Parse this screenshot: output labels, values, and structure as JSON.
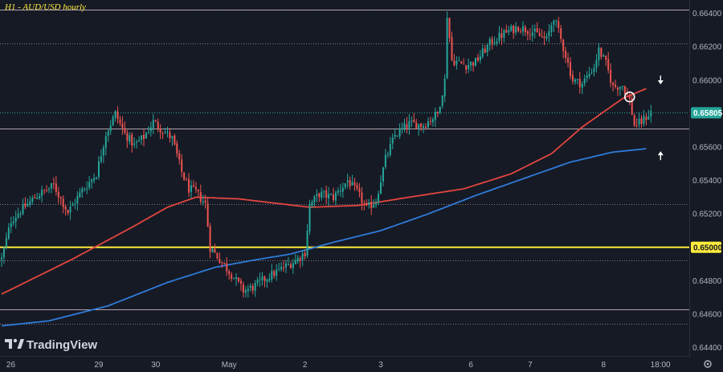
{
  "chart_data": {
    "type": "candlestick",
    "title": "H1 - AUD/USD hourly",
    "ylim": [
      0.6435,
      0.6648
    ],
    "y_ticks": [
      "0.66400",
      "0.66200",
      "0.66000",
      "0.65600",
      "0.65400",
      "0.65200",
      "0.64800",
      "0.64600",
      "0.64400"
    ],
    "y_tick_values": [
      0.664,
      0.662,
      0.66,
      0.656,
      0.654,
      0.652,
      0.648,
      0.646,
      0.644
    ],
    "x_ticks": [
      "26",
      "29",
      "30",
      "May",
      "2",
      "3",
      "6",
      "7",
      "8",
      "18:00"
    ],
    "x_tick_bars": [
      2,
      41,
      65,
      96,
      128,
      160,
      198,
      223,
      254,
      278
    ],
    "current_price": "0.65805",
    "current_price_value": 0.65805,
    "key_level_label": "0.65000",
    "key_level_value": 0.65,
    "horizontal_levels": [
      0.6642,
      0.6622,
      0.65805,
      0.6571,
      0.6526,
      0.6492,
      0.6463,
      0.6454
    ],
    "colors": {
      "up": "#26a69a",
      "down": "#ef5350",
      "ma_fast": "#e2463f",
      "ma_slow": "#2f7bd9",
      "key_level": "#ffeb3b",
      "title": "#ffeb3b",
      "background": "#161a25",
      "grid_level": "#d8c7cc",
      "price_badge": "#26a69a"
    },
    "ma_fast_keys": [
      [
        0,
        0.6472
      ],
      [
        30,
        0.6493
      ],
      [
        55,
        0.6512
      ],
      [
        70,
        0.6524
      ],
      [
        82,
        0.653
      ],
      [
        100,
        0.6529
      ],
      [
        112,
        0.6527
      ],
      [
        130,
        0.6524
      ],
      [
        150,
        0.6525
      ],
      [
        172,
        0.653
      ],
      [
        195,
        0.6535
      ],
      [
        215,
        0.6544
      ],
      [
        232,
        0.6556
      ],
      [
        245,
        0.6572
      ],
      [
        262,
        0.6589
      ],
      [
        272,
        0.6595
      ]
    ],
    "ma_slow_keys": [
      [
        0,
        0.6453
      ],
      [
        20,
        0.6456
      ],
      [
        45,
        0.6465
      ],
      [
        70,
        0.6479
      ],
      [
        90,
        0.6488
      ],
      [
        105,
        0.6492
      ],
      [
        122,
        0.6496
      ],
      [
        140,
        0.6503
      ],
      [
        160,
        0.651
      ],
      [
        180,
        0.652
      ],
      [
        200,
        0.6531
      ],
      [
        220,
        0.6541
      ],
      [
        240,
        0.6551
      ],
      [
        258,
        0.6557
      ],
      [
        272,
        0.6559
      ]
    ],
    "price_keys": [
      [
        0,
        0.6493
      ],
      [
        4,
        0.6516
      ],
      [
        8,
        0.6522
      ],
      [
        15,
        0.6531
      ],
      [
        22,
        0.6537
      ],
      [
        28,
        0.6521
      ],
      [
        34,
        0.6534
      ],
      [
        40,
        0.6544
      ],
      [
        44,
        0.6568
      ],
      [
        48,
        0.658
      ],
      [
        52,
        0.6568
      ],
      [
        56,
        0.6561
      ],
      [
        60,
        0.6566
      ],
      [
        64,
        0.6575
      ],
      [
        68,
        0.657
      ],
      [
        72,
        0.6565
      ],
      [
        76,
        0.6545
      ],
      [
        79,
        0.6535
      ],
      [
        82,
        0.6533
      ],
      [
        86,
        0.6526
      ],
      [
        88,
        0.65
      ],
      [
        93,
        0.6491
      ],
      [
        98,
        0.6482
      ],
      [
        102,
        0.6474
      ],
      [
        106,
        0.6476
      ],
      [
        112,
        0.6482
      ],
      [
        118,
        0.6487
      ],
      [
        124,
        0.6492
      ],
      [
        128,
        0.6497
      ],
      [
        130,
        0.6525
      ],
      [
        134,
        0.6532
      ],
      [
        140,
        0.653
      ],
      [
        146,
        0.654
      ],
      [
        150,
        0.6533
      ],
      [
        154,
        0.6523
      ],
      [
        158,
        0.6528
      ],
      [
        162,
        0.6553
      ],
      [
        166,
        0.6567
      ],
      [
        172,
        0.6574
      ],
      [
        178,
        0.6573
      ],
      [
        184,
        0.658
      ],
      [
        187,
        0.66
      ],
      [
        188,
        0.6639
      ],
      [
        190,
        0.6612
      ],
      [
        196,
        0.6609
      ],
      [
        200,
        0.6611
      ],
      [
        206,
        0.6622
      ],
      [
        212,
        0.6628
      ],
      [
        218,
        0.6632
      ],
      [
        224,
        0.6629
      ],
      [
        230,
        0.6624
      ],
      [
        233,
        0.6638
      ],
      [
        238,
        0.6615
      ],
      [
        241,
        0.66
      ],
      [
        245,
        0.6598
      ],
      [
        250,
        0.6608
      ],
      [
        252,
        0.6618
      ],
      [
        255,
        0.661
      ],
      [
        258,
        0.6596
      ],
      [
        262,
        0.6597
      ],
      [
        265,
        0.6588
      ],
      [
        267,
        0.6573
      ],
      [
        270,
        0.6575
      ],
      [
        274,
        0.6581
      ]
    ],
    "marker_circle_bar": 265,
    "marker_circle_value": 0.659,
    "arrow_down_bar": 274,
    "arrow_down_value": 0.6598,
    "arrow_up_bar": 274,
    "arrow_up_value": 0.6557
  },
  "branding": {
    "logo_text": "TradingView",
    "logo_icon": "tradingview-logo-icon",
    "settings_icon": "gear-icon"
  }
}
